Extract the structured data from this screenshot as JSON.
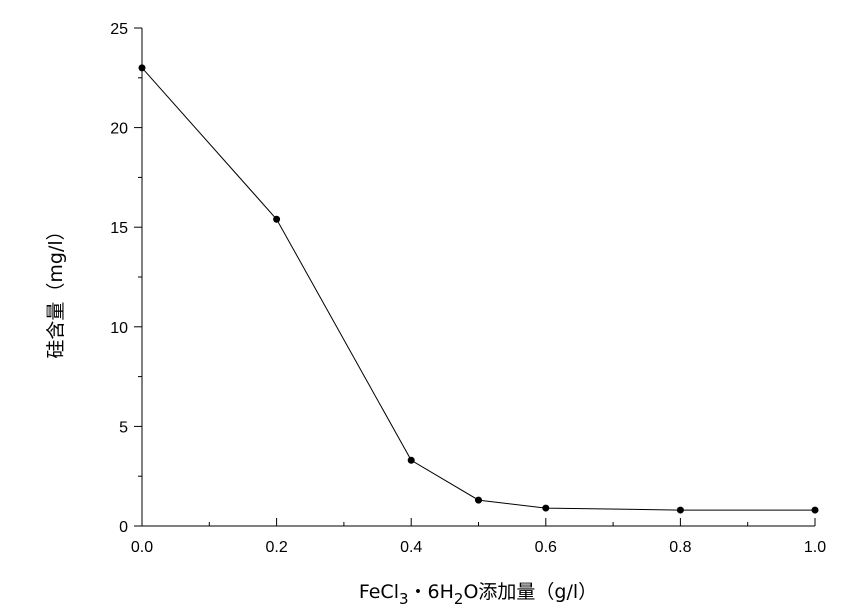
{
  "chart_data": {
    "type": "line",
    "title": "",
    "xlabel_parts": {
      "part1": "FeCl",
      "sub1": "3",
      "part2": "・6H",
      "sub2": "2",
      "part3": "O添加量（g/l）"
    },
    "ylabel": "硅含量（mg/l）",
    "xlim": [
      0.0,
      1.0
    ],
    "ylim": [
      0,
      25
    ],
    "xticks": [
      0.0,
      0.2,
      0.4,
      0.6,
      0.8,
      1.0
    ],
    "xtick_labels": [
      "0.0",
      "0.2",
      "0.4",
      "0.6",
      "0.8",
      "1.0"
    ],
    "yticks": [
      0,
      5,
      10,
      15,
      20,
      25
    ],
    "ytick_labels": [
      "0",
      "5",
      "10",
      "15",
      "20",
      "25"
    ],
    "grid": false,
    "legend": "none",
    "series": [
      {
        "x": [
          0.0,
          0.2,
          0.4,
          0.5,
          0.6,
          0.8,
          1.0
        ],
        "y": [
          23.0,
          15.4,
          3.3,
          1.3,
          0.9,
          0.8,
          0.8
        ]
      }
    ]
  }
}
